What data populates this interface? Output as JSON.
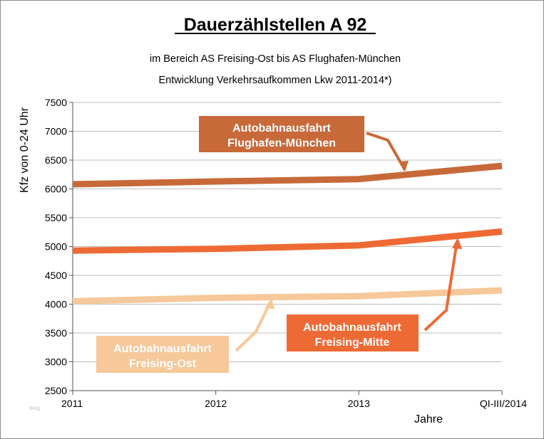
{
  "chart_data": {
    "type": "line",
    "title": "Dauerzählstellen A 92",
    "subtitle_line1": "im Bereich AS Freising-Ost bis AS Flughafen-München",
    "subtitle_line2": "Entwicklung Verkehrsaufkommen Lkw 2011-2014*)",
    "xlabel": "Jahre",
    "ylabel": "Kfz von 0-24 Uhr",
    "categories": [
      "2011",
      "2012",
      "2013",
      "QI-III/2014"
    ],
    "ylim": [
      2500,
      7500
    ],
    "yticks": [
      2500,
      3000,
      3500,
      4000,
      4500,
      5000,
      5500,
      6000,
      6500,
      7000,
      7500
    ],
    "grid": true,
    "series": [
      {
        "name": "Autobahnausfahrt Flughafen-München",
        "label_line1": "Autobahnausfahrt",
        "label_line2": "Flughafen-München",
        "color": "#c8693a",
        "values": [
          6080,
          6130,
          6170,
          6400
        ]
      },
      {
        "name": "Autobahnausfahrt Freising-Mitte",
        "label_line1": "Autobahnausfahrt",
        "label_line2": "Freising-Mitte",
        "color": "#ee6a35",
        "values": [
          4930,
          4960,
          5020,
          5260
        ]
      },
      {
        "name": "Autobahnausfahrt Freising-Ost",
        "label_line1": "Autobahnausfahrt",
        "label_line2": "Freising-Ost",
        "color": "#f6c89a",
        "values": [
          4050,
          4110,
          4140,
          4240
        ]
      }
    ]
  },
  "watermark": "blog"
}
